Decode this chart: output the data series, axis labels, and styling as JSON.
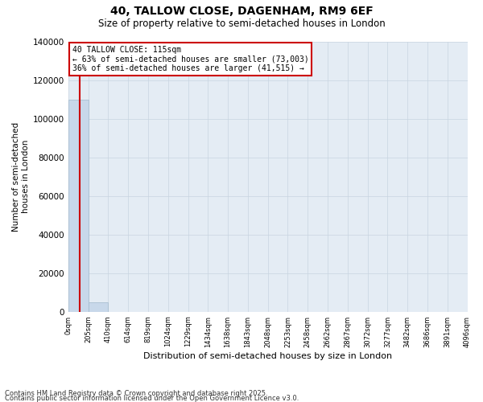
{
  "title": "40, TALLOW CLOSE, DAGENHAM, RM9 6EF",
  "subtitle": "Size of property relative to semi-detached houses in London",
  "xlabel": "Distribution of semi-detached houses by size in London",
  "ylabel": "Number of semi-detached\nhouses in London",
  "pct_smaller": 63,
  "pct_larger": 36,
  "count_smaller": 73003,
  "count_larger": 41515,
  "property_size_sqm": 115,
  "bin_edges": [
    0,
    205,
    410,
    614,
    819,
    1024,
    1229,
    1434,
    1638,
    1843,
    2048,
    2253,
    2458,
    2662,
    2867,
    3072,
    3277,
    3482,
    3686,
    3891,
    4096
  ],
  "bin_labels": [
    "0sqm",
    "205sqm",
    "410sqm",
    "614sqm",
    "819sqm",
    "1024sqm",
    "1229sqm",
    "1434sqm",
    "1638sqm",
    "1843sqm",
    "2048sqm",
    "2253sqm",
    "2458sqm",
    "2662sqm",
    "2867sqm",
    "3072sqm",
    "3277sqm",
    "3482sqm",
    "3686sqm",
    "3891sqm",
    "4096sqm"
  ],
  "bar_heights": [
    110000,
    5000,
    0,
    0,
    0,
    0,
    0,
    0,
    0,
    0,
    0,
    0,
    0,
    0,
    0,
    0,
    0,
    0,
    0,
    0
  ],
  "bar_color": "#c8d8ea",
  "bar_edgecolor": "#a0b8cc",
  "property_line_color": "#cc0000",
  "ylim": [
    0,
    140000
  ],
  "yticks": [
    0,
    20000,
    40000,
    60000,
    80000,
    100000,
    120000,
    140000
  ],
  "grid_color": "#c8d4e0",
  "bg_color": "#e4ecf4",
  "annotation_box_edgecolor": "#cc0000",
  "footer_line1": "Contains HM Land Registry data © Crown copyright and database right 2025.",
  "footer_line2": "Contains public sector information licensed under the Open Government Licence v3.0."
}
